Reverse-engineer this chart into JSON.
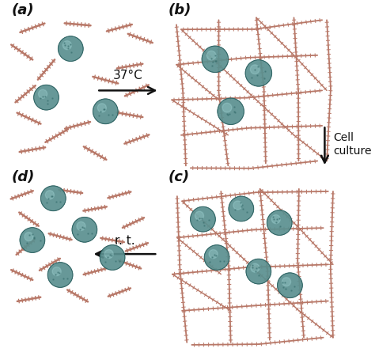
{
  "background_color": "#ffffff",
  "nanorod_color": "#b87868",
  "cell_color": "#5a8f8f",
  "cell_edge_color": "#3a6f6f",
  "arrow_color": "#111111",
  "label_color": "#111111",
  "panel_labels": [
    "(a)",
    "(b)",
    "(c)",
    "(d)"
  ],
  "arrow_labels": [
    "37°C",
    "Cell\nculture",
    "r. t."
  ],
  "fig_width": 4.74,
  "fig_height": 4.45
}
